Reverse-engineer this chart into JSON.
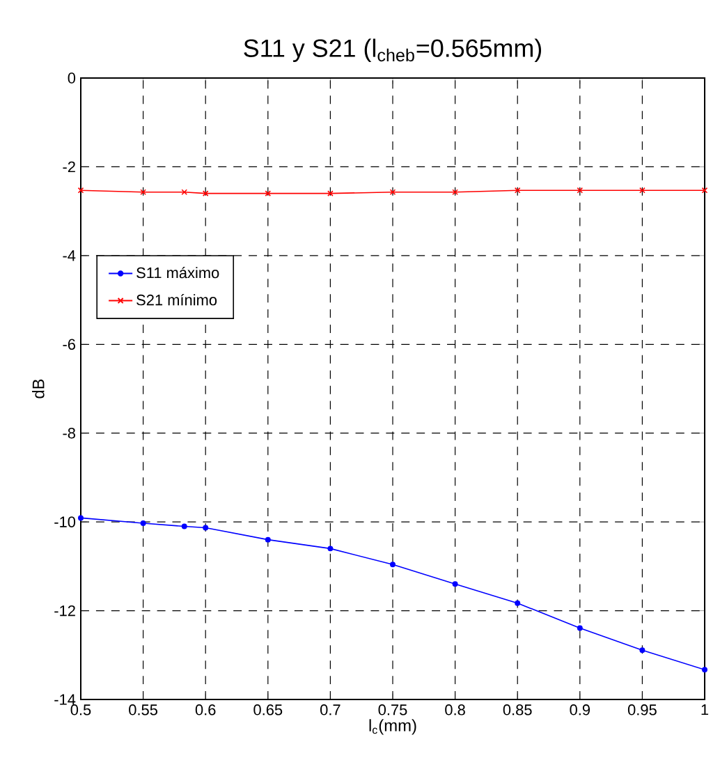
{
  "chart_data": {
    "type": "line",
    "title": "S11 y S21 (l$_{cheb}$=0.565mm)",
    "xlabel": "l$_{c}$(mm)",
    "ylabel": "dB",
    "x": [
      0.5,
      0.55,
      0.583,
      0.6,
      0.65,
      0.7,
      0.75,
      0.8,
      0.85,
      0.9,
      0.95,
      1.0
    ],
    "series": [
      {
        "name": "S11 máximo",
        "color": "#0000ff",
        "marker": "circle",
        "values": [
          -9.91,
          -10.03,
          -10.1,
          -10.13,
          -10.4,
          -10.6,
          -10.96,
          -11.4,
          -11.83,
          -12.39,
          -12.89,
          -13.33
        ]
      },
      {
        "name": "S21 mínimo",
        "color": "#ff0000",
        "marker": "cross",
        "values": [
          -2.53,
          -2.57,
          -2.57,
          -2.6,
          -2.6,
          -2.6,
          -2.57,
          -2.57,
          -2.53,
          -2.53,
          -2.53,
          -2.53
        ]
      }
    ],
    "xlim": [
      0.5,
      1
    ],
    "ylim": [
      -14,
      0
    ],
    "xticks": [
      0.5,
      0.55,
      0.6,
      0.65,
      0.7,
      0.75,
      0.8,
      0.85,
      0.9,
      0.95,
      1
    ],
    "yticks": [
      -14,
      -12,
      -10,
      -8,
      -6,
      -4,
      -2,
      0
    ],
    "grid": true,
    "legend": "top left",
    "line_style": "solid"
  }
}
